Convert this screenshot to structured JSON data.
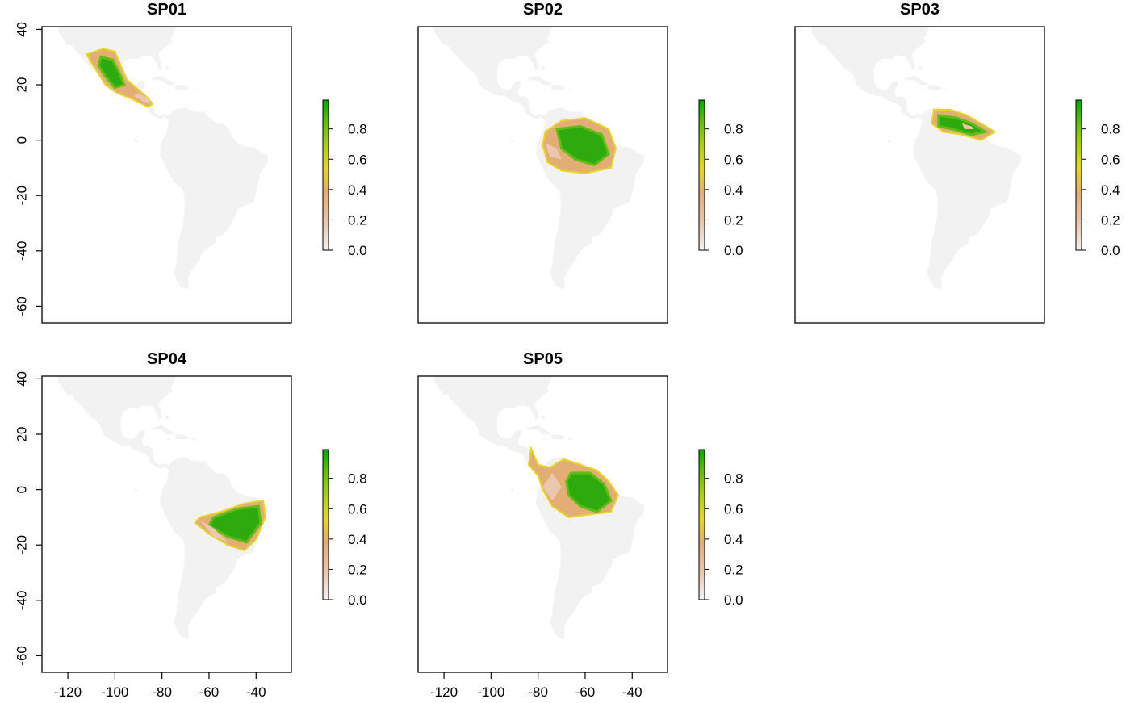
{
  "panels": [
    {
      "title": "SP01",
      "range": {
        "points": [
          [
            -112,
            31
          ],
          [
            -105,
            33
          ],
          [
            -100,
            32
          ],
          [
            -98,
            28
          ],
          [
            -95,
            22
          ],
          [
            -91,
            19
          ],
          [
            -87,
            16
          ],
          [
            -84,
            13
          ],
          [
            -86,
            12
          ],
          [
            -93,
            15
          ],
          [
            -99,
            17
          ],
          [
            -104,
            20
          ],
          [
            -107,
            24
          ],
          [
            -110,
            28
          ]
        ],
        "core": [
          [
            -106,
            30
          ],
          [
            -101,
            29
          ],
          [
            -98,
            24
          ],
          [
            -96,
            20
          ],
          [
            -100,
            19
          ],
          [
            -104,
            23
          ],
          [
            -107,
            27
          ]
        ],
        "low": [
          [
            -90,
            17
          ],
          [
            -86,
            15
          ],
          [
            -85,
            13
          ],
          [
            -88,
            14
          ],
          [
            -92,
            16
          ]
        ]
      }
    },
    {
      "title": "SP02",
      "range": {
        "points": [
          [
            -77,
            3
          ],
          [
            -70,
            7
          ],
          [
            -60,
            8
          ],
          [
            -50,
            4
          ],
          [
            -47,
            -3
          ],
          [
            -49,
            -10
          ],
          [
            -60,
            -12
          ],
          [
            -70,
            -11
          ],
          [
            -76,
            -8
          ],
          [
            -78,
            -2
          ]
        ],
        "core": [
          [
            -72,
            4
          ],
          [
            -62,
            5
          ],
          [
            -53,
            2
          ],
          [
            -50,
            -5
          ],
          [
            -56,
            -9
          ],
          [
            -64,
            -7
          ],
          [
            -70,
            -3
          ]
        ],
        "low": [
          [
            -77,
            -1
          ],
          [
            -72,
            -3
          ],
          [
            -70,
            -7
          ],
          [
            -75,
            -6
          ]
        ]
      }
    },
    {
      "title": "SP03",
      "range": {
        "points": [
          [
            -72,
            11
          ],
          [
            -65,
            11
          ],
          [
            -58,
            9
          ],
          [
            -52,
            6
          ],
          [
            -46,
            3
          ],
          [
            -52,
            0
          ],
          [
            -60,
            2
          ],
          [
            -68,
            3
          ],
          [
            -73,
            6
          ]
        ],
        "core": [
          [
            -70,
            9
          ],
          [
            -62,
            8
          ],
          [
            -56,
            6
          ],
          [
            -50,
            3
          ],
          [
            -56,
            2
          ],
          [
            -64,
            4
          ],
          [
            -70,
            5
          ]
        ],
        "low": [
          [
            -60,
            6
          ],
          [
            -56,
            5
          ],
          [
            -55,
            4
          ],
          [
            -59,
            4
          ]
        ]
      }
    },
    {
      "title": "SP04",
      "range": {
        "points": [
          [
            -64,
            -10
          ],
          [
            -55,
            -8
          ],
          [
            -45,
            -5
          ],
          [
            -37,
            -4
          ],
          [
            -36,
            -10
          ],
          [
            -40,
            -18
          ],
          [
            -45,
            -22
          ],
          [
            -52,
            -20
          ],
          [
            -60,
            -16
          ],
          [
            -66,
            -12
          ]
        ],
        "core": [
          [
            -58,
            -10
          ],
          [
            -48,
            -7
          ],
          [
            -39,
            -6
          ],
          [
            -38,
            -12
          ],
          [
            -44,
            -19
          ],
          [
            -52,
            -17
          ],
          [
            -60,
            -13
          ]
        ],
        "low": [
          [
            -64,
            -11
          ],
          [
            -58,
            -14
          ],
          [
            -52,
            -19
          ],
          [
            -58,
            -17
          ]
        ]
      }
    },
    {
      "title": "SP05",
      "range": {
        "points": [
          [
            -83,
            15
          ],
          [
            -80,
            9
          ],
          [
            -75,
            8
          ],
          [
            -69,
            11
          ],
          [
            -62,
            9
          ],
          [
            -55,
            7
          ],
          [
            -50,
            3
          ],
          [
            -46,
            -2
          ],
          [
            -49,
            -8
          ],
          [
            -58,
            -9
          ],
          [
            -67,
            -10
          ],
          [
            -74,
            -6
          ],
          [
            -78,
            0
          ],
          [
            -80,
            5
          ],
          [
            -84,
            9
          ]
        ],
        "core": [
          [
            -66,
            6
          ],
          [
            -58,
            6
          ],
          [
            -52,
            2
          ],
          [
            -49,
            -4
          ],
          [
            -55,
            -8
          ],
          [
            -62,
            -6
          ],
          [
            -67,
            -2
          ],
          [
            -68,
            3
          ]
        ],
        "low": [
          [
            -74,
            6
          ],
          [
            -70,
            1
          ],
          [
            -74,
            -4
          ],
          [
            -78,
            1
          ]
        ]
      }
    }
  ],
  "legend": {
    "ticks": [
      "0.0",
      "0.2",
      "0.4",
      "0.6",
      "0.8"
    ],
    "colors": [
      "#f2f2f2",
      "#ebc7ad",
      "#e3ad76",
      "#e6d52a",
      "#9fce1a",
      "#5fbc12",
      "#00a600"
    ]
  },
  "axes": {
    "y_ticks": [
      "40",
      "20",
      "0",
      "-20",
      "-40",
      "-60"
    ],
    "x_ticks": [
      "-120",
      "-100",
      "-80",
      "-60",
      "-40"
    ]
  },
  "land_color": "#f2f2f2"
}
